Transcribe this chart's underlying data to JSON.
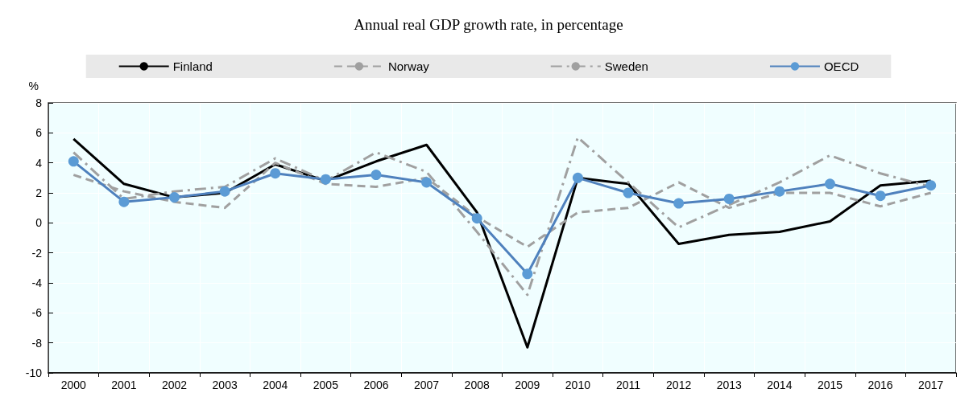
{
  "chart_data": {
    "type": "line",
    "title": "Annual real GDP growth rate, in percentage",
    "ylabel": "%",
    "categories": [
      "2000",
      "2001",
      "2002",
      "2003",
      "2004",
      "2005",
      "2006",
      "2007",
      "2008",
      "2009",
      "2010",
      "2011",
      "2012",
      "2013",
      "2014",
      "2015",
      "2016",
      "2017"
    ],
    "series": [
      {
        "name": "Finland",
        "color": "#000000",
        "line_style": "solid",
        "marker": "none",
        "values": [
          5.6,
          2.6,
          1.7,
          2.0,
          3.9,
          2.8,
          4.1,
          5.2,
          0.7,
          -8.3,
          3.0,
          2.6,
          -1.4,
          -0.8,
          -0.6,
          0.1,
          2.5,
          2.8
        ]
      },
      {
        "name": "Norway",
        "color": "#a0a0a0",
        "line_style": "dashed",
        "marker": "none",
        "values": [
          3.2,
          2.1,
          1.4,
          1.0,
          4.0,
          2.6,
          2.4,
          3.0,
          0.4,
          -1.6,
          0.7,
          1.0,
          2.7,
          1.0,
          2.0,
          2.0,
          1.1,
          2.0
        ]
      },
      {
        "name": "Sweden",
        "color": "#a0a0a0",
        "line_style": "dashdot",
        "marker": "none",
        "values": [
          4.7,
          1.6,
          2.1,
          2.4,
          4.3,
          2.8,
          4.7,
          3.4,
          -0.6,
          -4.8,
          5.7,
          2.7,
          -0.3,
          1.2,
          2.7,
          4.5,
          3.3,
          2.4
        ]
      },
      {
        "name": "OECD",
        "color": "#4f81bd",
        "line_style": "solid",
        "marker": "circle",
        "values": [
          4.1,
          1.4,
          1.7,
          2.1,
          3.3,
          2.9,
          3.2,
          2.7,
          0.3,
          -3.4,
          3.0,
          2.0,
          1.3,
          1.6,
          2.1,
          2.6,
          1.8,
          2.5
        ]
      }
    ],
    "ylim": [
      -10,
      8
    ],
    "yticks": [
      -10,
      -8,
      -6,
      -4,
      -2,
      0,
      2,
      4,
      6,
      8
    ],
    "grid": true,
    "legend": "top"
  }
}
